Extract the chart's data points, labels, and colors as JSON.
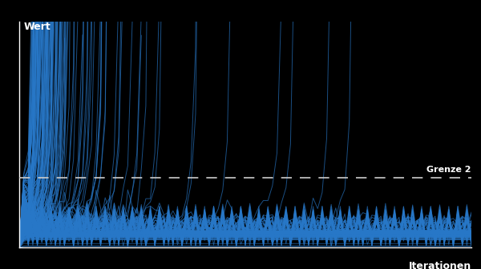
{
  "title": "",
  "xlabel": "Iterationen",
  "ylabel": "Wert",
  "background_color": "#000000",
  "line_color": "#2878c8",
  "boundary_color": "#cccccc",
  "boundary_value": 2.0,
  "boundary_label": "Grenze 2",
  "text_color": "#ffffff",
  "axis_color": "#ffffff",
  "max_iter": 100,
  "ylim": [
    0,
    6.5
  ],
  "xlim": [
    0,
    100
  ],
  "line_alpha": 0.65,
  "line_width": 0.7,
  "fig_width": 6.0,
  "fig_height": 3.36,
  "dpi": 100
}
